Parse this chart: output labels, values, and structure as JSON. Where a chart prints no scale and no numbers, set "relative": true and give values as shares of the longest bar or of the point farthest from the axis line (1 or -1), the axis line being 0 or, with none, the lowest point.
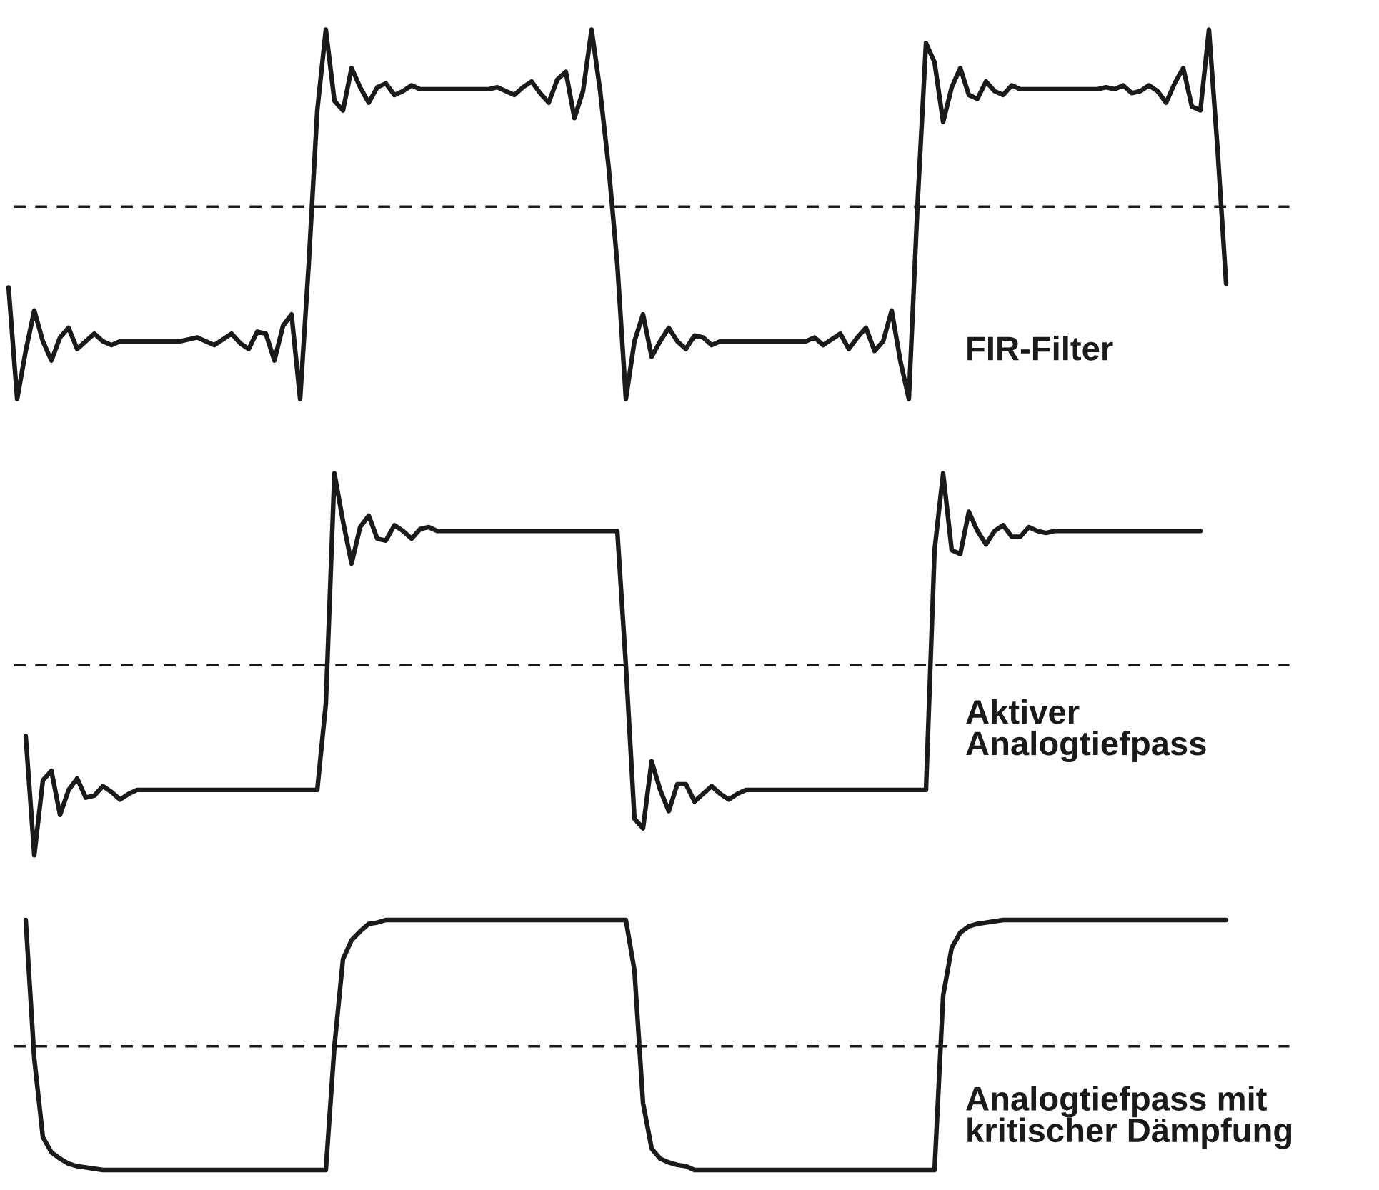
{
  "chart_data": [
    {
      "type": "line",
      "relative": true,
      "line_style": "solid",
      "categories": [
        null,
        null,
        null,
        null,
        null,
        null,
        null,
        null,
        null,
        null,
        null,
        null,
        null,
        null,
        null,
        null,
        null,
        null,
        null,
        null,
        null,
        null,
        null,
        null,
        null,
        null,
        null,
        null,
        null,
        null,
        null,
        null,
        null,
        null,
        null,
        null,
        null,
        null,
        null,
        null,
        null,
        null,
        null,
        null,
        null,
        null,
        null,
        null,
        null,
        null,
        null,
        null,
        null,
        null,
        null,
        null,
        null,
        null,
        null,
        null,
        null,
        null,
        null,
        null,
        null,
        null,
        null,
        null,
        null,
        null,
        null,
        null,
        null,
        null,
        null,
        null,
        null,
        null,
        null,
        null,
        null,
        null,
        null,
        null,
        null,
        null,
        null,
        null,
        null,
        null,
        null,
        null,
        null,
        null,
        null,
        null,
        null,
        null,
        null,
        null,
        null,
        null,
        null,
        null,
        null,
        null,
        null,
        null,
        null,
        null,
        null,
        null,
        null,
        null,
        null,
        null,
        null,
        null,
        null,
        null,
        null,
        null,
        null,
        null,
        null,
        null,
        null,
        null,
        null,
        null,
        null,
        null,
        null,
        null,
        null,
        null,
        null,
        null,
        null,
        null,
        null,
        null,
        null
      ],
      "series": [
        {
          "color": "#1a1a1a",
          "values": [
            -0.42,
            -1.0,
            -0.75,
            -0.54,
            -0.7,
            -0.8,
            -0.68,
            -0.63,
            -0.74,
            -0.7,
            -0.66,
            -0.7,
            -0.72,
            -0.7,
            -0.7,
            -0.7,
            -0.7,
            -0.7,
            -0.7,
            -0.7,
            -0.7,
            -0.69,
            -0.68,
            -0.7,
            -0.72,
            -0.69,
            -0.66,
            -0.71,
            -0.74,
            -0.65,
            -0.66,
            -0.8,
            -0.62,
            -0.56,
            -1.0,
            -0.3,
            0.5,
            0.92,
            0.55,
            0.5,
            0.72,
            0.62,
            0.54,
            0.62,
            0.64,
            0.58,
            0.6,
            0.63,
            0.61,
            0.61,
            0.61,
            0.61,
            0.61,
            0.61,
            0.61,
            0.61,
            0.61,
            0.62,
            0.6,
            0.58,
            0.62,
            0.65,
            0.59,
            0.54,
            0.66,
            0.7,
            0.46,
            0.6,
            0.92,
            0.6,
            0.2,
            -0.3,
            -1.0,
            -0.7,
            -0.56,
            -0.78,
            -0.7,
            -0.63,
            -0.7,
            -0.74,
            -0.67,
            -0.68,
            -0.72,
            -0.7,
            -0.7,
            -0.7,
            -0.7,
            -0.7,
            -0.7,
            -0.7,
            -0.7,
            -0.7,
            -0.7,
            -0.7,
            -0.68,
            -0.72,
            -0.69,
            -0.66,
            -0.74,
            -0.68,
            -0.63,
            -0.75,
            -0.7,
            -0.54,
            -0.8,
            -1.0,
            0.0,
            0.85,
            0.75,
            0.44,
            0.62,
            0.72,
            0.58,
            0.56,
            0.65,
            0.6,
            0.58,
            0.63,
            0.61,
            0.61,
            0.61,
            0.61,
            0.61,
            0.61,
            0.61,
            0.61,
            0.61,
            0.61,
            0.62,
            0.61,
            0.63,
            0.59,
            0.6,
            0.63,
            0.6,
            0.54,
            0.64,
            0.72,
            0.52,
            0.5,
            0.92,
            0.3,
            -0.4
          ]
        }
      ],
      "ref_lines": [
        {
          "axis": "y",
          "value": 0,
          "color": "#1a1a1a",
          "line_style": "dashed"
        }
      ],
      "annotations": [
        "FIR-Filter"
      ]
    },
    {
      "type": "line",
      "relative": true,
      "line_style": "solid",
      "categories": [
        null,
        null,
        null,
        null,
        null,
        null,
        null,
        null,
        null,
        null,
        null,
        null,
        null,
        null,
        null,
        null,
        null,
        null,
        null,
        null,
        null,
        null,
        null,
        null,
        null,
        null,
        null,
        null,
        null,
        null,
        null,
        null,
        null,
        null,
        null,
        null,
        null,
        null,
        null,
        null,
        null,
        null,
        null,
        null,
        null,
        null,
        null,
        null,
        null,
        null,
        null,
        null,
        null,
        null,
        null,
        null,
        null,
        null,
        null,
        null,
        null,
        null,
        null,
        null,
        null,
        null,
        null,
        null,
        null,
        null,
        null,
        null,
        null,
        null,
        null,
        null,
        null,
        null,
        null,
        null,
        null,
        null,
        null,
        null,
        null,
        null,
        null,
        null,
        null,
        null,
        null,
        null,
        null,
        null,
        null,
        null,
        null,
        null,
        null,
        null,
        null,
        null,
        null,
        null,
        null,
        null,
        null,
        null,
        null,
        null,
        null,
        null,
        null,
        null,
        null,
        null,
        null,
        null,
        null,
        null,
        null,
        null,
        null,
        null,
        null,
        null,
        null,
        null,
        null,
        null,
        null,
        null,
        null,
        null,
        null,
        null,
        null,
        null,
        null,
        null,
        null,
        null,
        null
      ],
      "series": [
        {
          "color": "#1a1a1a",
          "values": [
            null,
            null,
            -0.37,
            -0.99,
            -0.6,
            -0.55,
            -0.78,
            -0.65,
            -0.59,
            -0.69,
            -0.68,
            -0.63,
            -0.66,
            -0.7,
            -0.67,
            -0.65,
            -0.65,
            -0.65,
            -0.65,
            -0.65,
            -0.65,
            -0.65,
            -0.65,
            -0.65,
            -0.65,
            -0.65,
            -0.65,
            -0.65,
            -0.65,
            -0.65,
            -0.65,
            -0.65,
            -0.65,
            -0.65,
            -0.65,
            -0.65,
            -0.65,
            -0.2,
            1.0,
            0.75,
            0.53,
            0.72,
            0.78,
            0.66,
            0.65,
            0.73,
            0.7,
            0.66,
            0.71,
            0.72,
            0.7,
            0.7,
            0.7,
            0.7,
            0.7,
            0.7,
            0.7,
            0.7,
            0.7,
            0.7,
            0.7,
            0.7,
            0.7,
            0.7,
            0.7,
            0.7,
            0.7,
            0.7,
            0.7,
            0.7,
            0.7,
            0.7,
            0.0,
            -0.8,
            -0.85,
            -0.5,
            -0.65,
            -0.76,
            -0.62,
            -0.62,
            -0.71,
            -0.67,
            -0.63,
            -0.67,
            -0.7,
            -0.67,
            -0.65,
            -0.65,
            -0.65,
            -0.65,
            -0.65,
            -0.65,
            -0.65,
            -0.65,
            -0.65,
            -0.65,
            -0.65,
            -0.65,
            -0.65,
            -0.65,
            -0.65,
            -0.65,
            -0.65,
            -0.65,
            -0.65,
            -0.65,
            -0.65,
            -0.65,
            0.6,
            1.0,
            0.6,
            0.58,
            0.8,
            0.7,
            0.63,
            0.7,
            0.73,
            0.67,
            0.67,
            0.72,
            0.7,
            0.69,
            0.7,
            0.7,
            0.7,
            0.7,
            0.7,
            0.7,
            0.7,
            0.7,
            0.7,
            0.7,
            0.7,
            0.7,
            0.7,
            0.7,
            0.7,
            0.7,
            0.7,
            0.7,
            null,
            null,
            null
          ]
        }
      ],
      "ref_lines": [
        {
          "axis": "y",
          "value": 0,
          "color": "#1a1a1a",
          "line_style": "dashed"
        }
      ],
      "annotations": [
        "Aktiver\nAnalogtiefpass"
      ]
    },
    {
      "type": "line",
      "relative": true,
      "line_style": "solid",
      "categories": [
        null,
        null,
        null,
        null,
        null,
        null,
        null,
        null,
        null,
        null,
        null,
        null,
        null,
        null,
        null,
        null,
        null,
        null,
        null,
        null,
        null,
        null,
        null,
        null,
        null,
        null,
        null,
        null,
        null,
        null,
        null,
        null,
        null,
        null,
        null,
        null,
        null,
        null,
        null,
        null,
        null,
        null,
        null,
        null,
        null,
        null,
        null,
        null,
        null,
        null,
        null,
        null,
        null,
        null,
        null,
        null,
        null,
        null,
        null,
        null,
        null,
        null,
        null,
        null,
        null,
        null,
        null,
        null,
        null,
        null,
        null,
        null,
        null,
        null,
        null,
        null,
        null,
        null,
        null,
        null,
        null,
        null,
        null,
        null,
        null,
        null,
        null,
        null,
        null,
        null,
        null,
        null,
        null,
        null,
        null,
        null,
        null,
        null,
        null,
        null,
        null,
        null,
        null,
        null,
        null,
        null,
        null,
        null,
        null,
        null,
        null,
        null,
        null,
        null,
        null,
        null,
        null,
        null,
        null,
        null,
        null,
        null,
        null,
        null,
        null,
        null,
        null,
        null,
        null,
        null,
        null,
        null,
        null,
        null,
        null,
        null,
        null,
        null,
        null,
        null,
        null,
        null,
        null
      ],
      "series": [
        {
          "color": "#1a1a1a",
          "values": [
            null,
            null,
            1.0,
            -0.1,
            -0.72,
            -0.84,
            -0.89,
            -0.93,
            -0.95,
            -0.96,
            -0.97,
            -0.98,
            -0.98,
            -0.98,
            -0.98,
            -0.98,
            -0.98,
            -0.98,
            -0.98,
            -0.98,
            -0.98,
            -0.98,
            -0.98,
            -0.98,
            -0.98,
            -0.98,
            -0.98,
            -0.98,
            -0.98,
            -0.98,
            -0.98,
            -0.98,
            -0.98,
            -0.98,
            -0.98,
            -0.98,
            -0.98,
            -0.98,
            0.0,
            0.69,
            0.84,
            0.91,
            0.97,
            0.98,
            1.0,
            1.0,
            1.0,
            1.0,
            1.0,
            1.0,
            1.0,
            1.0,
            1.0,
            1.0,
            1.0,
            1.0,
            1.0,
            1.0,
            1.0,
            1.0,
            1.0,
            1.0,
            1.0,
            1.0,
            1.0,
            1.0,
            1.0,
            1.0,
            1.0,
            1.0,
            1.0,
            1.0,
            1.0,
            0.6,
            -0.45,
            -0.81,
            -0.89,
            -0.92,
            -0.94,
            -0.95,
            -0.98,
            -0.98,
            -0.98,
            -0.98,
            -0.98,
            -0.98,
            -0.98,
            -0.98,
            -0.98,
            -0.98,
            -0.98,
            -0.98,
            -0.98,
            -0.98,
            -0.98,
            -0.98,
            -0.98,
            -0.98,
            -0.98,
            -0.98,
            -0.98,
            -0.98,
            -0.98,
            -0.98,
            -0.98,
            -0.98,
            -0.98,
            -0.98,
            -0.98,
            0.4,
            0.78,
            0.9,
            0.95,
            0.97,
            0.98,
            0.99,
            1.0,
            1.0,
            1.0,
            1.0,
            1.0,
            1.0,
            1.0,
            1.0,
            1.0,
            1.0,
            1.0,
            1.0,
            1.0,
            1.0,
            1.0,
            1.0,
            1.0,
            1.0,
            1.0,
            1.0,
            1.0,
            1.0,
            1.0,
            1.0,
            1.0,
            1.0,
            1.0
          ]
        }
      ],
      "ref_lines": [
        {
          "axis": "y",
          "value": 0,
          "color": "#1a1a1a",
          "line_style": "dashed"
        }
      ],
      "annotations": [
        "Analogtiefpass mit\nkritischer Dämpfung"
      ]
    }
  ]
}
